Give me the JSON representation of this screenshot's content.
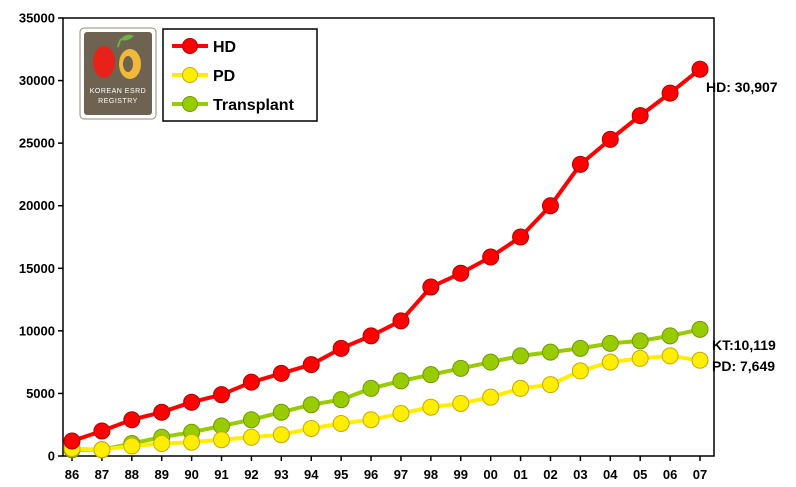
{
  "chart_data": {
    "type": "line",
    "title": "",
    "xlabel": "",
    "ylabel": "",
    "categories": [
      "86",
      "87",
      "88",
      "89",
      "90",
      "91",
      "92",
      "93",
      "94",
      "95",
      "96",
      "97",
      "98",
      "99",
      "00",
      "01",
      "02",
      "03",
      "04",
      "05",
      "06",
      "07"
    ],
    "ylim": [
      0,
      35000
    ],
    "yticks": [
      0,
      5000,
      10000,
      15000,
      20000,
      25000,
      30000,
      35000
    ],
    "grid": false,
    "legend_position": "top-left",
    "series": [
      {
        "name": "HD",
        "color": "#ff0000",
        "marker_stroke": "#b00000",
        "values": [
          1200,
          2000,
          2900,
          3500,
          4300,
          4900,
          5900,
          6600,
          7300,
          8600,
          9600,
          10800,
          13500,
          14600,
          15900,
          17500,
          20000,
          23300,
          25300,
          27200,
          29000,
          30907
        ]
      },
      {
        "name": "PD",
        "color": "#ffee00",
        "marker_stroke": "#c8a800",
        "values": [
          600,
          500,
          800,
          1000,
          1100,
          1300,
          1500,
          1700,
          2200,
          2600,
          2900,
          3400,
          3900,
          4200,
          4700,
          5400,
          5700,
          6800,
          7500,
          7800,
          8000,
          7649
        ]
      },
      {
        "name": "Transplant",
        "color": "#99cc00",
        "marker_stroke": "#6e9a00",
        "values": [
          500,
          500,
          1000,
          1500,
          1900,
          2400,
          2900,
          3500,
          4100,
          4500,
          5400,
          6000,
          6500,
          7000,
          7500,
          8000,
          8300,
          8600,
          9000,
          9200,
          9600,
          10119
        ]
      }
    ],
    "annotations": [
      {
        "text": "HD: 30,907",
        "series": "HD"
      },
      {
        "text": "KT:10,119",
        "series": "Transplant"
      },
      {
        "text": "PD: 7,649",
        "series": "PD"
      }
    ]
  },
  "logo": {
    "text_line1": "KOREAN ESRD",
    "text_line2": "REGISTRY"
  }
}
